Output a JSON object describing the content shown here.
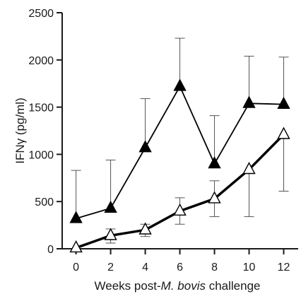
{
  "chart_data": {
    "type": "line",
    "xlabel": "Weeks post-M. bovis challenge",
    "xlabel_parts": [
      "Weeks post-",
      "M. bovis",
      " challenge"
    ],
    "ylabel": "IFNγ (pg/ml)",
    "xlim": [
      -0.8,
      13
    ],
    "ylim": [
      0,
      2500
    ],
    "x_ticks": [
      0,
      2,
      4,
      6,
      8,
      10,
      12
    ],
    "y_ticks": [
      0,
      500,
      1000,
      1500,
      2000,
      2500
    ],
    "grid": false,
    "legend": "none",
    "series": [
      {
        "marker": "filled-triangle",
        "color": "#000000",
        "line_style": "thin",
        "x": [
          0,
          2,
          4,
          6,
          8,
          10,
          12
        ],
        "y": [
          320,
          430,
          1070,
          1720,
          900,
          1540,
          1530
        ],
        "error_upper": [
          830,
          940,
          1590,
          2230,
          1410,
          2040,
          2030
        ]
      },
      {
        "marker": "open-triangle",
        "color": "#000000",
        "line_style": "thick",
        "x": [
          0,
          2,
          4,
          6,
          8,
          10,
          12
        ],
        "y": [
          10,
          140,
          200,
          400,
          530,
          840,
          1210
        ],
        "error_lower": [
          10,
          60,
          130,
          260,
          340,
          340,
          610
        ],
        "error_upper": [
          10,
          210,
          260,
          540,
          720,
          840,
          1210
        ]
      }
    ]
  }
}
